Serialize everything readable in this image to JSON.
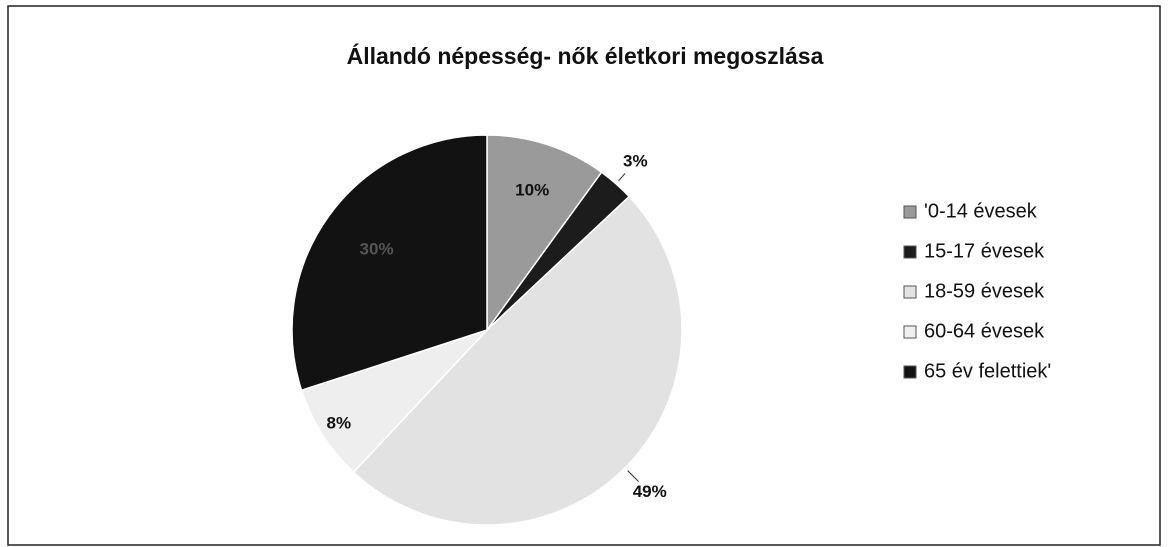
{
  "chart_data": {
    "type": "pie",
    "title": "Állandó népesség- nők életkori megoszlása",
    "categories": [
      "'0-14 évesek",
      "15-17 évesek",
      "18-59 évesek",
      "60-64 évesek",
      "65 év felettiek'"
    ],
    "values": [
      10,
      3,
      49,
      8,
      30
    ],
    "value_labels": [
      "10%",
      "3%",
      "49%",
      "8%",
      "30%"
    ],
    "colors": [
      "#9a9a9a",
      "#1c1c1c",
      "#e2e2e2",
      "#eeeeee",
      "#121212"
    ],
    "legend": "right"
  }
}
